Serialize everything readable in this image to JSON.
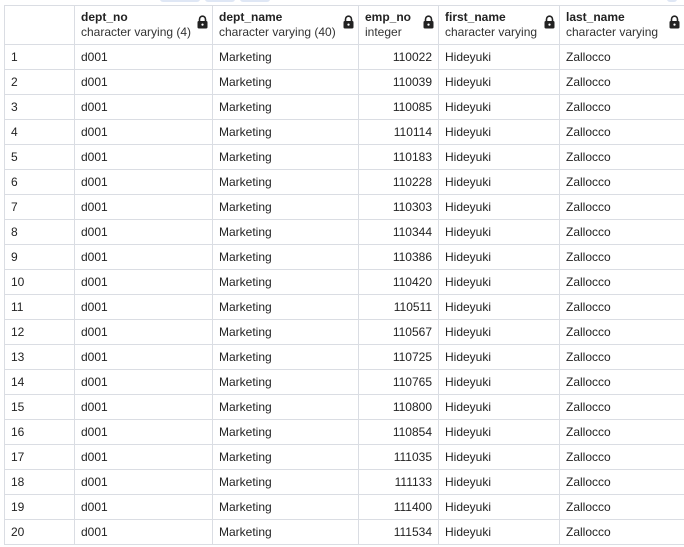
{
  "columns": [
    {
      "name": "dept_no",
      "type": "character varying (4)",
      "locked": true
    },
    {
      "name": "dept_name",
      "type": "character varying (40)",
      "locked": true
    },
    {
      "name": "emp_no",
      "type": "integer",
      "locked": true
    },
    {
      "name": "first_name",
      "type": "character varying",
      "locked": true
    },
    {
      "name": "last_name",
      "type": "character varying",
      "locked": true
    }
  ],
  "rows": [
    {
      "index": "1",
      "dept_no": "d001",
      "dept_name": "Marketing",
      "emp_no": "110022",
      "first_name": "Hideyuki",
      "last_name": "Zallocco"
    },
    {
      "index": "2",
      "dept_no": "d001",
      "dept_name": "Marketing",
      "emp_no": "110039",
      "first_name": "Hideyuki",
      "last_name": "Zallocco"
    },
    {
      "index": "3",
      "dept_no": "d001",
      "dept_name": "Marketing",
      "emp_no": "110085",
      "first_name": "Hideyuki",
      "last_name": "Zallocco"
    },
    {
      "index": "4",
      "dept_no": "d001",
      "dept_name": "Marketing",
      "emp_no": "110114",
      "first_name": "Hideyuki",
      "last_name": "Zallocco"
    },
    {
      "index": "5",
      "dept_no": "d001",
      "dept_name": "Marketing",
      "emp_no": "110183",
      "first_name": "Hideyuki",
      "last_name": "Zallocco"
    },
    {
      "index": "6",
      "dept_no": "d001",
      "dept_name": "Marketing",
      "emp_no": "110228",
      "first_name": "Hideyuki",
      "last_name": "Zallocco"
    },
    {
      "index": "7",
      "dept_no": "d001",
      "dept_name": "Marketing",
      "emp_no": "110303",
      "first_name": "Hideyuki",
      "last_name": "Zallocco"
    },
    {
      "index": "8",
      "dept_no": "d001",
      "dept_name": "Marketing",
      "emp_no": "110344",
      "first_name": "Hideyuki",
      "last_name": "Zallocco"
    },
    {
      "index": "9",
      "dept_no": "d001",
      "dept_name": "Marketing",
      "emp_no": "110386",
      "first_name": "Hideyuki",
      "last_name": "Zallocco"
    },
    {
      "index": "10",
      "dept_no": "d001",
      "dept_name": "Marketing",
      "emp_no": "110420",
      "first_name": "Hideyuki",
      "last_name": "Zallocco"
    },
    {
      "index": "11",
      "dept_no": "d001",
      "dept_name": "Marketing",
      "emp_no": "110511",
      "first_name": "Hideyuki",
      "last_name": "Zallocco"
    },
    {
      "index": "12",
      "dept_no": "d001",
      "dept_name": "Marketing",
      "emp_no": "110567",
      "first_name": "Hideyuki",
      "last_name": "Zallocco"
    },
    {
      "index": "13",
      "dept_no": "d001",
      "dept_name": "Marketing",
      "emp_no": "110725",
      "first_name": "Hideyuki",
      "last_name": "Zallocco"
    },
    {
      "index": "14",
      "dept_no": "d001",
      "dept_name": "Marketing",
      "emp_no": "110765",
      "first_name": "Hideyuki",
      "last_name": "Zallocco"
    },
    {
      "index": "15",
      "dept_no": "d001",
      "dept_name": "Marketing",
      "emp_no": "110800",
      "first_name": "Hideyuki",
      "last_name": "Zallocco"
    },
    {
      "index": "16",
      "dept_no": "d001",
      "dept_name": "Marketing",
      "emp_no": "110854",
      "first_name": "Hideyuki",
      "last_name": "Zallocco"
    },
    {
      "index": "17",
      "dept_no": "d001",
      "dept_name": "Marketing",
      "emp_no": "111035",
      "first_name": "Hideyuki",
      "last_name": "Zallocco"
    },
    {
      "index": "18",
      "dept_no": "d001",
      "dept_name": "Marketing",
      "emp_no": "111133",
      "first_name": "Hideyuki",
      "last_name": "Zallocco"
    },
    {
      "index": "19",
      "dept_no": "d001",
      "dept_name": "Marketing",
      "emp_no": "111400",
      "first_name": "Hideyuki",
      "last_name": "Zallocco"
    },
    {
      "index": "20",
      "dept_no": "d001",
      "dept_name": "Marketing",
      "emp_no": "111534",
      "first_name": "Hideyuki",
      "last_name": "Zallocco"
    }
  ],
  "icons": {
    "locked_column": "lock-icon"
  },
  "colors": {
    "grid_border": "#dadde3",
    "text": "#222222",
    "background": "#ffffff"
  }
}
